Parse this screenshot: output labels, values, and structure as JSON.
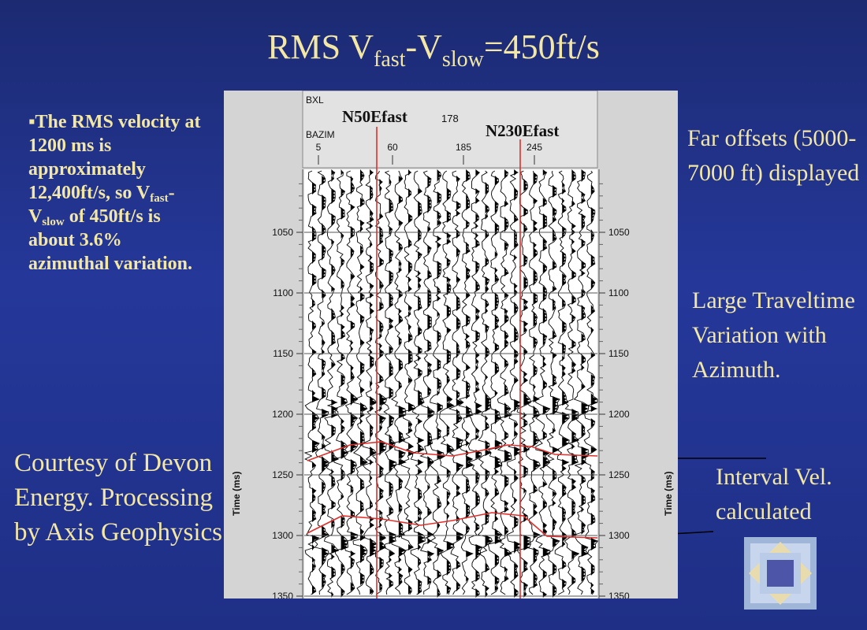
{
  "title": {
    "main": "RMS V",
    "sub1": "fast",
    "dash": "-V",
    "sub2": "slow",
    "rest": "=450ft/s"
  },
  "left_note": {
    "line1": "▪The RMS velocity at 1200 ms is approximately 12,400ft/s, so V",
    "sub1": "fast",
    "mid": "-V",
    "sub2": "slow",
    "line2": " of 450ft/s is about 3.6% azimuthal variation."
  },
  "courtesy": "Courtesy of Devon Energy. Processing by Axis Geophysics",
  "right_notes": {
    "far_offsets": "Far offsets (5000-7000 ft) displayed",
    "large_variation": "Large Traveltime Variation with Azimuth.",
    "interval": "Interval Vel. calculated"
  },
  "section": {
    "header_row1": "BXL",
    "header_row2": "BAZIM",
    "header_bxl_value": "178",
    "fast_labels": [
      "N50Efast",
      "N230Efast"
    ],
    "azimuth_ticks": [
      "5",
      "60",
      "185",
      "245"
    ],
    "time_axis_label": "Time (ms)",
    "time_ticks": [
      "1050",
      "1100",
      "1150",
      "1200",
      "1250",
      "1300",
      "1350"
    ],
    "colors": {
      "pick_line": "#e0302c",
      "trace": "#000000",
      "background": "#ffffff",
      "panel": "#d4d4d4"
    }
  },
  "logo": {
    "icon": "nested-diamond-square-icon"
  }
}
